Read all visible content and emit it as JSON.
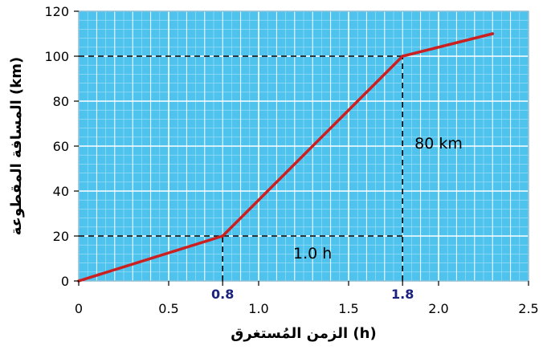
{
  "chart_data": {
    "type": "line",
    "title": "",
    "xlabel": "الزمن المُستغرق (h)",
    "ylabel": "المسافة المقطوعة (km)",
    "xlim": [
      0,
      2.5
    ],
    "ylim": [
      0,
      120
    ],
    "x_ticks": [
      "0",
      "0.5",
      "1.0",
      "1.5",
      "2.0",
      "2.5"
    ],
    "y_ticks": [
      "0",
      "20",
      "40",
      "60",
      "80",
      "100",
      "120"
    ],
    "grid": true,
    "series": [
      {
        "color": "#cc1f1f",
        "points": [
          {
            "x": 0,
            "y": 0
          },
          {
            "x": 0.8,
            "y": 20
          },
          {
            "x": 1.8,
            "y": 100
          },
          {
            "x": 2.3,
            "y": 110
          }
        ]
      }
    ],
    "highlight_ticks": [
      {
        "x": 0.8,
        "label": "0.8"
      },
      {
        "x": 1.8,
        "label": "1.8"
      }
    ],
    "guides": [
      {
        "from": [
          0,
          20
        ],
        "to": [
          1.8,
          20
        ]
      },
      {
        "from": [
          0,
          100
        ],
        "to": [
          1.8,
          100
        ]
      },
      {
        "from": [
          0.8,
          0
        ],
        "to": [
          0.8,
          20
        ]
      },
      {
        "from": [
          1.8,
          0
        ],
        "to": [
          1.8,
          100
        ]
      }
    ],
    "annotations": [
      {
        "text": "1.0 h",
        "x": 1.3,
        "y": 10
      },
      {
        "text": "80 km",
        "x": 2.0,
        "y": 59
      }
    ]
  },
  "colors": {
    "grid_background": "#4ec3ee",
    "grid_major": "#ffffff",
    "grid_minor": "#a8e0f5",
    "line": "#cc1f1f",
    "highlight_label": "#1a237e",
    "guide": "#000000"
  }
}
